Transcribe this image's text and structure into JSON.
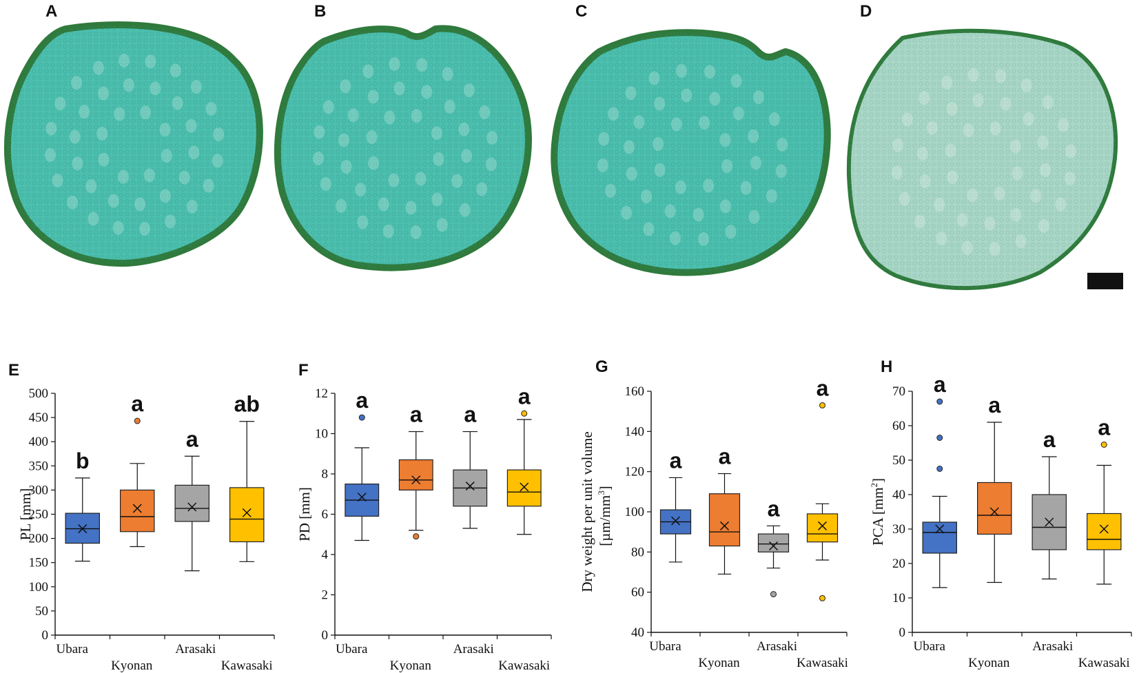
{
  "colors": {
    "Ubara": "#4472c4",
    "Kyonan": "#ed7d31",
    "Arasaki": "#a5a5a5",
    "Kawasaki": "#ffc000",
    "section_fill": "#4cbfae",
    "section_rim": "#2f7a3c",
    "section_light": "#a9d6c6",
    "scale_bar": "#111111"
  },
  "photo_panels": [
    {
      "letter": "A"
    },
    {
      "letter": "B"
    },
    {
      "letter": "C"
    },
    {
      "letter": "D"
    }
  ],
  "chart_data": [
    {
      "panel": "E",
      "type": "box",
      "ylabel": "PL [mm]",
      "ylabel_lines": [
        "PL [mm]"
      ],
      "ylim": [
        0,
        500
      ],
      "yticks": [
        0,
        50,
        100,
        150,
        200,
        250,
        300,
        350,
        400,
        450,
        500
      ],
      "categories": [
        "Ubara",
        "Kyonan",
        "Arasaki",
        "Kawasaki"
      ],
      "boxes": [
        {
          "name": "Ubara",
          "min": 153,
          "q1": 190,
          "median": 220,
          "q3": 252,
          "max": 325,
          "mean": 220,
          "outliers": [],
          "sig": "b"
        },
        {
          "name": "Kyonan",
          "min": 183,
          "q1": 214,
          "median": 245,
          "q3": 300,
          "max": 355,
          "mean": 262,
          "outliers": [
            443
          ],
          "sig": "a"
        },
        {
          "name": "Arasaki",
          "min": 133,
          "q1": 235,
          "median": 262,
          "q3": 310,
          "max": 370,
          "mean": 265,
          "outliers": [],
          "sig": "a"
        },
        {
          "name": "Kawasaki",
          "min": 152,
          "q1": 193,
          "median": 240,
          "q3": 305,
          "max": 442,
          "mean": 253,
          "outliers": [],
          "sig": "ab"
        }
      ]
    },
    {
      "panel": "F",
      "type": "box",
      "ylabel": "PD [mm]",
      "ylabel_lines": [
        "PD [mm]"
      ],
      "ylim": [
        0,
        12
      ],
      "yticks": [
        0,
        2,
        4,
        6,
        8,
        10,
        12
      ],
      "categories": [
        "Ubara",
        "Kyonan",
        "Arasaki",
        "Kawasaki"
      ],
      "boxes": [
        {
          "name": "Ubara",
          "min": 4.7,
          "q1": 5.9,
          "median": 6.7,
          "q3": 7.5,
          "max": 9.3,
          "mean": 6.85,
          "outliers": [
            10.8
          ],
          "sig": "a"
        },
        {
          "name": "Kyonan",
          "min": 5.2,
          "q1": 7.2,
          "median": 7.7,
          "q3": 8.7,
          "max": 10.1,
          "mean": 7.7,
          "outliers": [
            4.9
          ],
          "sig": "a"
        },
        {
          "name": "Arasaki",
          "min": 5.3,
          "q1": 6.4,
          "median": 7.3,
          "q3": 8.2,
          "max": 10.1,
          "mean": 7.4,
          "outliers": [],
          "sig": "a"
        },
        {
          "name": "Kawasaki",
          "min": 5.0,
          "q1": 6.4,
          "median": 7.1,
          "q3": 8.2,
          "max": 10.7,
          "mean": 7.35,
          "outliers": [
            11.0
          ],
          "sig": "a"
        }
      ]
    },
    {
      "panel": "G",
      "type": "box",
      "ylabel": "Dry weight per unit volume [µm/mm3]",
      "ylabel_lines": [
        "Dry weight per unit volume",
        "[µm/mm",
        "3",
        "]"
      ],
      "ylim": [
        40,
        160
      ],
      "yticks": [
        40,
        60,
        80,
        100,
        120,
        140,
        160
      ],
      "categories": [
        "Ubara",
        "Kyonan",
        "Arasaki",
        "Kawasaki"
      ],
      "boxes": [
        {
          "name": "Ubara",
          "min": 75,
          "q1": 89,
          "median": 95,
          "q3": 101,
          "max": 117,
          "mean": 95.5,
          "outliers": [],
          "sig": "a"
        },
        {
          "name": "Kyonan",
          "min": 69,
          "q1": 83,
          "median": 90,
          "q3": 109,
          "max": 119,
          "mean": 93,
          "outliers": [],
          "sig": "a"
        },
        {
          "name": "Arasaki",
          "min": 72,
          "q1": 80,
          "median": 84,
          "q3": 89,
          "max": 93,
          "mean": 83,
          "outliers": [
            59
          ],
          "sig": "a"
        },
        {
          "name": "Kawasaki",
          "min": 76,
          "q1": 85,
          "median": 89,
          "q3": 99,
          "max": 104,
          "mean": 93,
          "outliers": [
            153,
            57
          ],
          "sig": "a"
        }
      ]
    },
    {
      "panel": "H",
      "type": "box",
      "ylabel": "PCA [mm2]",
      "ylabel_lines": [
        "PCA [mm",
        "2",
        "]"
      ],
      "ylim": [
        0,
        70
      ],
      "yticks": [
        0,
        10,
        20,
        30,
        40,
        50,
        60,
        70
      ],
      "categories": [
        "Ubara",
        "Kyonan",
        "Arasaki",
        "Kawasaki"
      ],
      "boxes": [
        {
          "name": "Ubara",
          "min": 13,
          "q1": 23,
          "median": 29,
          "q3": 32,
          "max": 39.5,
          "mean": 30,
          "outliers": [
            67,
            56.5,
            47.5
          ],
          "sig": "a"
        },
        {
          "name": "Kyonan",
          "min": 14.5,
          "q1": 28.5,
          "median": 34,
          "q3": 43.5,
          "max": 61,
          "mean": 35,
          "outliers": [],
          "sig": "a"
        },
        {
          "name": "Arasaki",
          "min": 15.5,
          "q1": 24,
          "median": 30.5,
          "q3": 40,
          "max": 51,
          "mean": 32,
          "outliers": [],
          "sig": "a"
        },
        {
          "name": "Kawasaki",
          "min": 14,
          "q1": 24,
          "median": 27,
          "q3": 34.5,
          "max": 48.5,
          "mean": 30,
          "outliers": [
            54.5
          ],
          "sig": "a"
        }
      ]
    }
  ]
}
